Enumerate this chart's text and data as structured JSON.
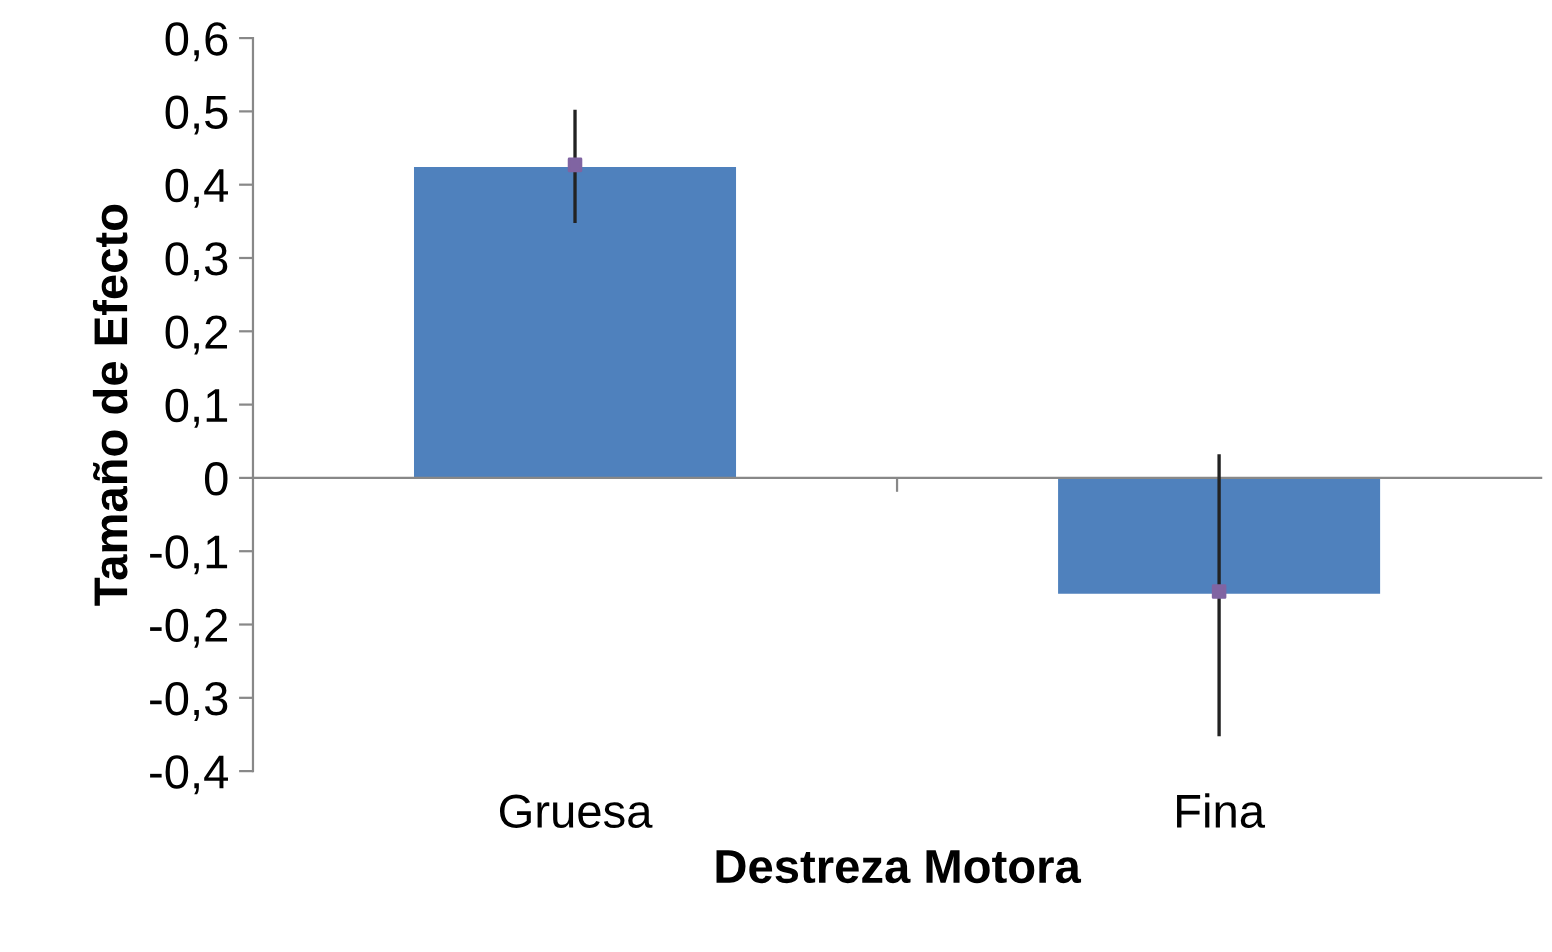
{
  "chart_data": {
    "type": "bar",
    "xlabel": "Destreza Motora",
    "ylabel": "Tamaño de Efecto",
    "categories": [
      "Gruesa",
      "Fina"
    ],
    "series": [
      {
        "color": "#4f81bd",
        "values": [
          0.424,
          -0.158
        ],
        "errors": [
          [
            0.35,
            0.5
          ],
          [
            -0.35,
            0.03
          ]
        ]
      },
      {
        "type": "scatter",
        "color": "#8064a2",
        "x": [
          "Gruesa",
          "Fina"
        ],
        "values": [
          0.427,
          -0.155
        ],
        "marker": "square"
      }
    ],
    "ylim": [
      -0.4,
      0.6
    ],
    "yticks": [
      {
        "value": -0.4,
        "label": "-0,4"
      },
      {
        "value": -0.3,
        "label": "-0,3"
      },
      {
        "value": -0.2,
        "label": "-0,2"
      },
      {
        "value": -0.1,
        "label": "-0,1"
      },
      0,
      {
        "value": 0.1,
        "label": "0,1"
      },
      {
        "value": 0.2,
        "label": "0,2"
      },
      {
        "value": 0.3,
        "label": "0,3"
      },
      {
        "value": 0.4,
        "label": "0,4"
      },
      {
        "value": 0.5,
        "label": "0,5"
      },
      {
        "value": 0.6,
        "label": "0,6"
      }
    ],
    "legend": false
  }
}
